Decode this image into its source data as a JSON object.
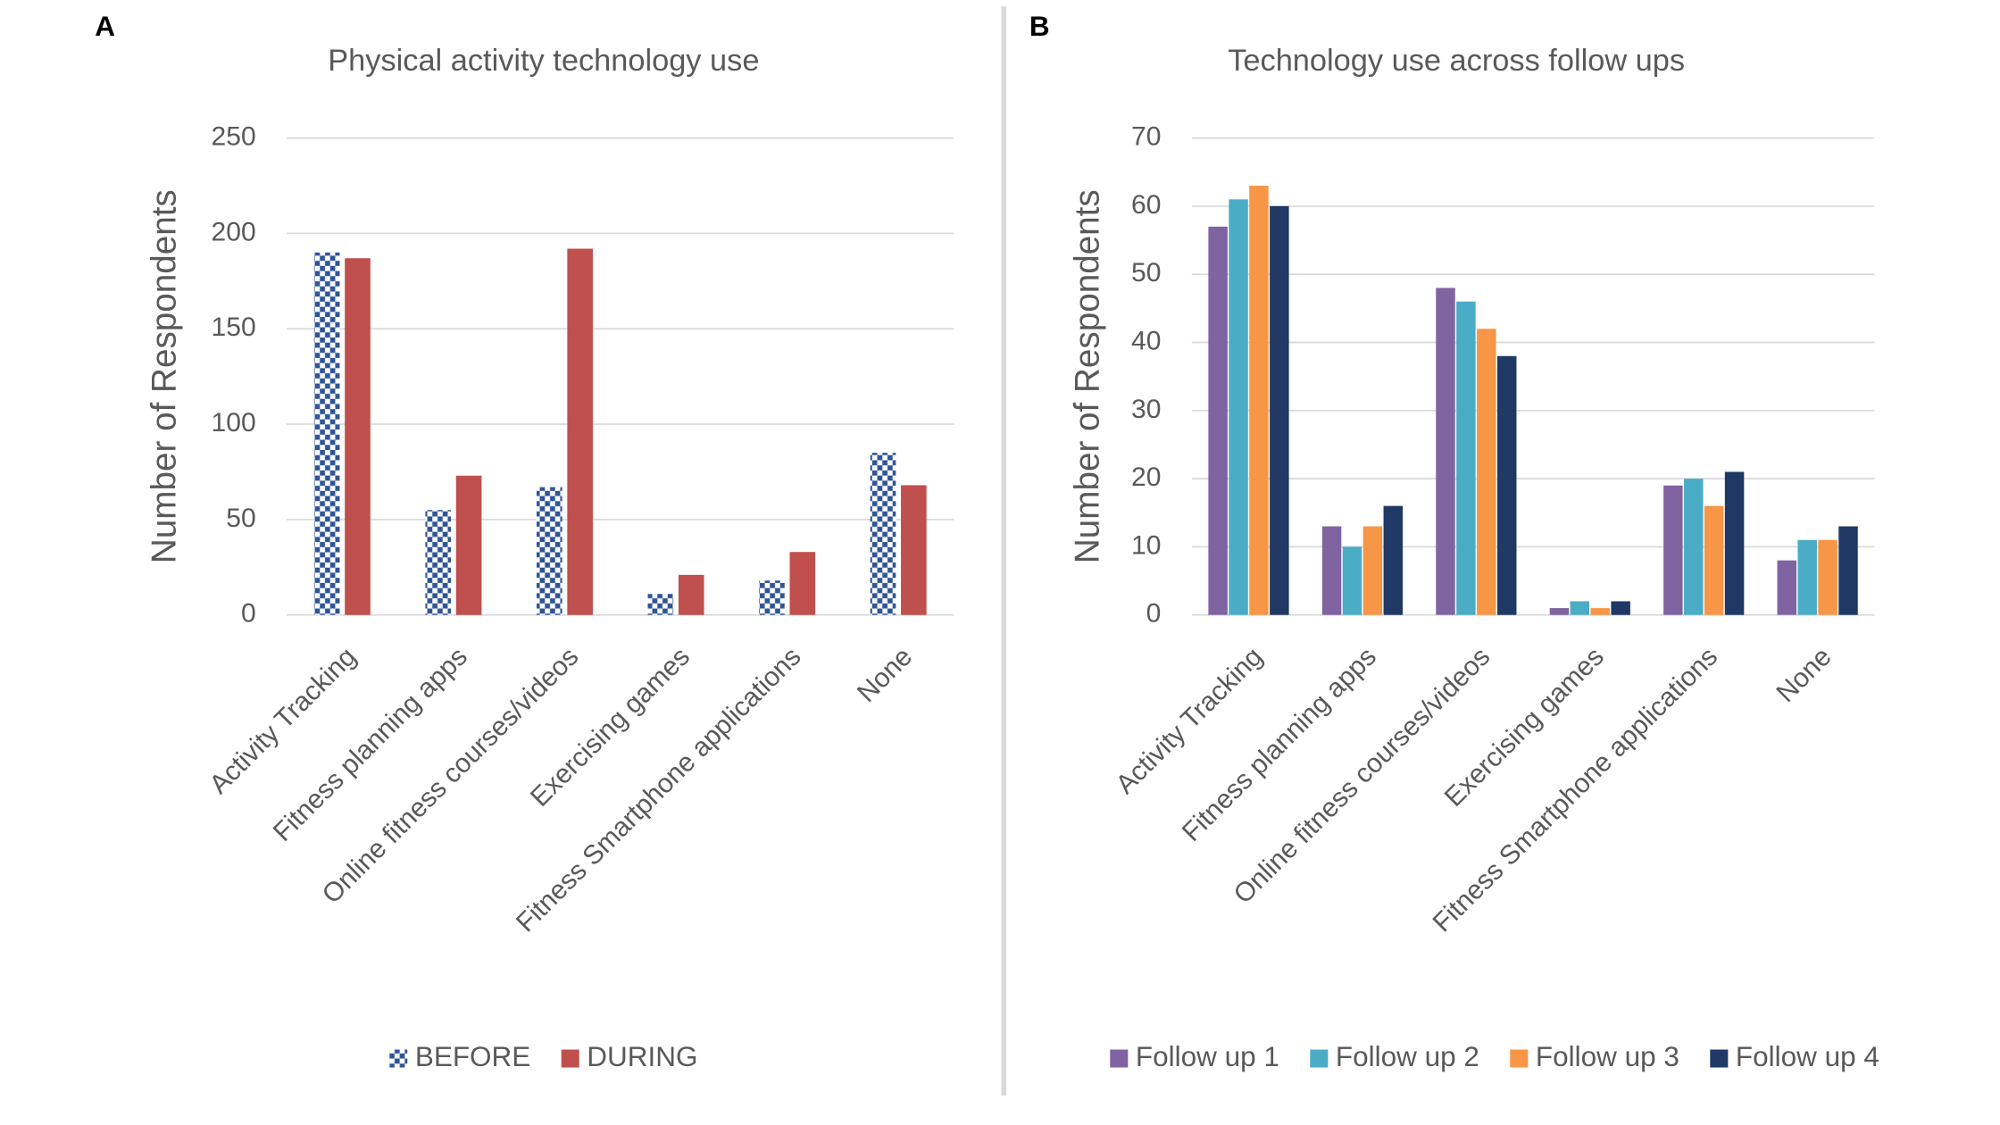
{
  "chart_data": [
    {
      "type": "bar",
      "panel_label": "A",
      "title": "Physical activity technology use",
      "y_label": "Number of Respondents",
      "categories": [
        "Activity Tracking",
        "Fitness planning apps",
        "Online fitness courses/videos",
        "Exercising games",
        "Fitness Smartphone applications",
        "None"
      ],
      "series": [
        {
          "name": "BEFORE",
          "color": "#2f5597",
          "pattern": "checkerboard",
          "values": [
            190,
            55,
            67,
            11,
            18,
            85
          ]
        },
        {
          "name": "DURING",
          "color": "#c0504d",
          "values": [
            187,
            73,
            192,
            21,
            33,
            68
          ]
        }
      ],
      "ylim": [
        0,
        250
      ],
      "yticks": [
        0,
        50,
        100,
        150,
        200,
        250
      ],
      "grid": true
    },
    {
      "type": "bar",
      "panel_label": "B",
      "title": "Technology use across follow ups",
      "y_label": "Number of Respondents",
      "categories": [
        "Activity Tracking",
        "Fitness planning apps",
        "Online fitness courses/videos",
        "Exercising games",
        "Fitness Smartphone applications",
        "None"
      ],
      "series": [
        {
          "name": "Follow up 1",
          "color": "#8064a2",
          "values": [
            57,
            13,
            48,
            1,
            19,
            8
          ]
        },
        {
          "name": "Follow up 2",
          "color": "#4bacc6",
          "values": [
            61,
            10,
            46,
            2,
            20,
            11
          ]
        },
        {
          "name": "Follow up 3",
          "color": "#f79646",
          "values": [
            63,
            13,
            42,
            1,
            16,
            11
          ]
        },
        {
          "name": "Follow up 4",
          "color": "#1f3864",
          "values": [
            60,
            16,
            38,
            2,
            21,
            13
          ]
        }
      ],
      "ylim": [
        0,
        70
      ],
      "yticks": [
        0,
        10,
        20,
        30,
        40,
        50,
        60,
        70
      ],
      "grid": true
    }
  ]
}
